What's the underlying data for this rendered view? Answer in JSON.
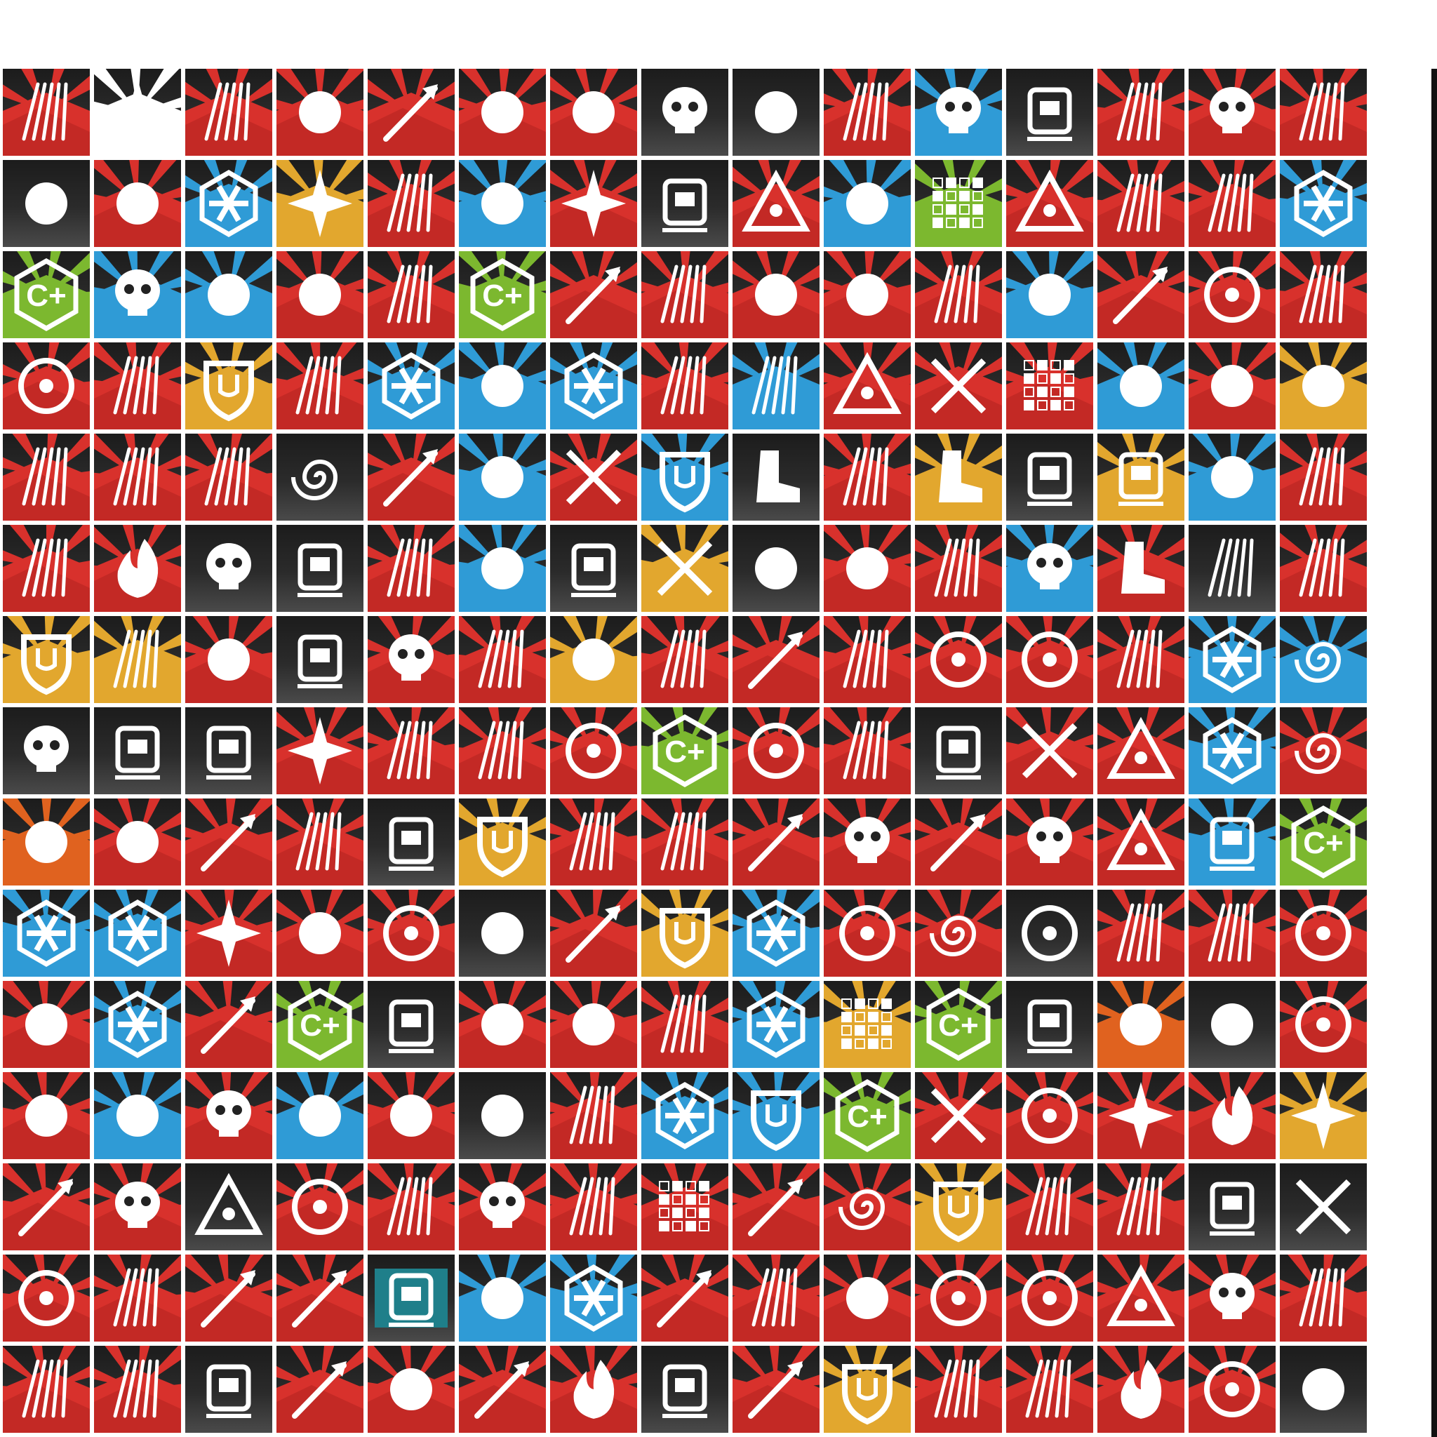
{
  "sheet": {
    "columns": 15,
    "rows": 15,
    "colors": {
      "red": "#d8312c",
      "dark_red": "#9e1c1a",
      "blue": "#2f9bd6",
      "yellow": "#e2a72e",
      "green": "#7cb82f",
      "orange": "#e0621f",
      "white": "#ffffff",
      "dark": "#222222",
      "grey": "#9a9a9a"
    },
    "tiles": [
      [
        "red-burst",
        "white-star",
        "red-burst",
        "red-fist",
        "red-axe",
        "red-emblem",
        "red-ribbon",
        "grey-beast",
        "grey-cone",
        "red-burst",
        "blue-tiger",
        "grey-robot",
        "red-burst",
        "red-skull",
        "red-burst"
      ],
      [
        "grey-arrows",
        "red-flower",
        "blue-hex",
        "yellow-star",
        "red-burst",
        "blue-figure",
        "red-shuriken",
        "grey-cube",
        "red-triangle",
        "blue-sword",
        "green-grid",
        "red-triangle",
        "red-burst",
        "red-burst",
        "blue-hex"
      ],
      [
        "green-plus",
        "blue-face",
        "blue-wheel",
        "red-cylinder",
        "red-burst",
        "green-plus",
        "red-dagger",
        "red-lines",
        "red-crosshair",
        "red-cylinder",
        "red-burst",
        "blue-orb",
        "red-anchor",
        "red-circle",
        "red-burst"
      ],
      [
        "red-circle",
        "red-burst",
        "yellow-shield",
        "red-burst",
        "blue-hex",
        "blue-butterfly",
        "blue-hex",
        "red-burst",
        "blue-burst",
        "red-peaks",
        "red-x",
        "red-grid",
        "blue-arm",
        "red-ribbon",
        "yellow-tool"
      ],
      [
        "red-burst",
        "red-lines",
        "red-lines",
        "grey-swirl",
        "red-axe",
        "blue-figure",
        "red-x",
        "blue-shield",
        "grey-boot",
        "red-blade",
        "yellow-boot",
        "grey-robot",
        "yellow-lantern",
        "blue-stripes",
        "red-burst"
      ],
      [
        "red-burst",
        "red-fire",
        "grey-beast",
        "grey-turret",
        "red-burst",
        "blue-figure",
        "grey-turret",
        "yellow-swords",
        "grey-cone",
        "red-drone",
        "red-burst",
        "blue-face",
        "red-boot",
        "grey-blade",
        "red-burst"
      ],
      [
        "yellow-shield",
        "yellow-burst",
        "red-camera",
        "grey-tube",
        "red-beast",
        "red-burst",
        "yellow-chevron",
        "red-burst",
        "red-spear",
        "red-burst",
        "red-ring",
        "red-moon",
        "red-burst",
        "blue-hex",
        "blue-swirl"
      ],
      [
        "grey-mask",
        "grey-door",
        "grey-robot",
        "red-star",
        "red-burst",
        "red-burst",
        "red-moon",
        "green-plus",
        "red-ring",
        "red-burst",
        "grey-turret",
        "red-x",
        "red-triangle",
        "blue-hex",
        "red-swirl"
      ],
      [
        "orange-rifle",
        "red-wave",
        "red-axe",
        "red-burst",
        "grey-gate",
        "yellow-eagle",
        "red-lines",
        "red-burst",
        "red-arrow",
        "red-ram",
        "red-hammer",
        "red-demon",
        "red-triangle",
        "blue-tube",
        "green-plus"
      ],
      [
        "blue-flake",
        "blue-flake",
        "red-shuriken",
        "red-bomb",
        "red-target",
        "grey-cone",
        "red-arrow",
        "yellow-shield",
        "blue-flake",
        "red-target",
        "red-swirl",
        "grey-eye",
        "red-lines",
        "red-burst",
        "red-ring"
      ],
      [
        "red-diamond",
        "blue-flake",
        "red-arrow",
        "green-plus",
        "grey-turret",
        "red-pills",
        "red-cylinder",
        "red-burst",
        "blue-flake",
        "yellow-honeycomb",
        "green-plus",
        "grey-robot",
        "orange-rockets",
        "grey-glasses",
        "red-compass"
      ],
      [
        "red-zigzag",
        "blue-figure",
        "red-wolf",
        "blue-jellyfish",
        "red-blood",
        "grey-figure",
        "red-sparkle",
        "blue-flake",
        "blue-shield",
        "green-plus",
        "red-claws",
        "red-ring",
        "red-star",
        "red-fire",
        "yellow-star"
      ],
      [
        "red-arrow",
        "red-face",
        "grey-triangle",
        "red-moon",
        "red-burst",
        "red-skull",
        "red-burst",
        "red-grid",
        "red-pickaxe",
        "red-spiral",
        "yellow-shield",
        "red-burst",
        "red-burst",
        "grey-turret",
        "grey-x"
      ],
      [
        "red-eye",
        "red-burst",
        "red-arrow",
        "red-chute",
        "teal-gadget",
        "blue-bell",
        "blue-hex",
        "red-bar",
        "red-burst",
        "red-wreath",
        "red-vortex",
        "red-eye",
        "red-triforce",
        "red-demon",
        "red-lines"
      ],
      [
        "red-lines",
        "red-burst",
        "grey-tower",
        "red-arrow",
        "red-beard",
        "red-arrow",
        "red-fire",
        "grey-gate",
        "red-bow",
        "yellow-shield",
        "red-burst",
        "red-burst",
        "red-fire",
        "red-ring",
        "grey-horns"
      ]
    ]
  }
}
